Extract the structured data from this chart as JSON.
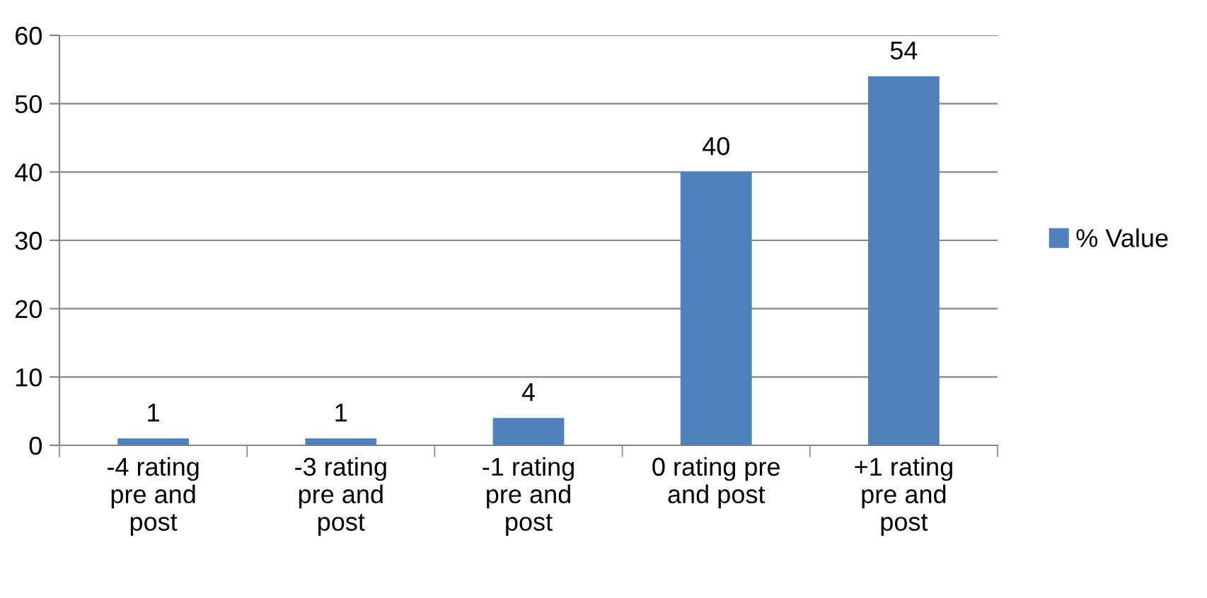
{
  "chart_data": {
    "type": "bar",
    "categories": [
      "-4 rating\npre and\npost",
      "-3 rating\npre and\npost",
      "-1 rating\npre and\npost",
      "0 rating pre\nand post",
      "+1 rating\npre and\npost"
    ],
    "series": [
      {
        "name": "% Value",
        "color": "#4f81bd",
        "values": [
          1,
          1,
          4,
          40,
          54
        ]
      }
    ],
    "ylim": [
      0,
      60
    ],
    "yticks": [
      0,
      10,
      20,
      30,
      40,
      50,
      60
    ],
    "grid": "y",
    "legend": "right",
    "data_labels": true
  }
}
